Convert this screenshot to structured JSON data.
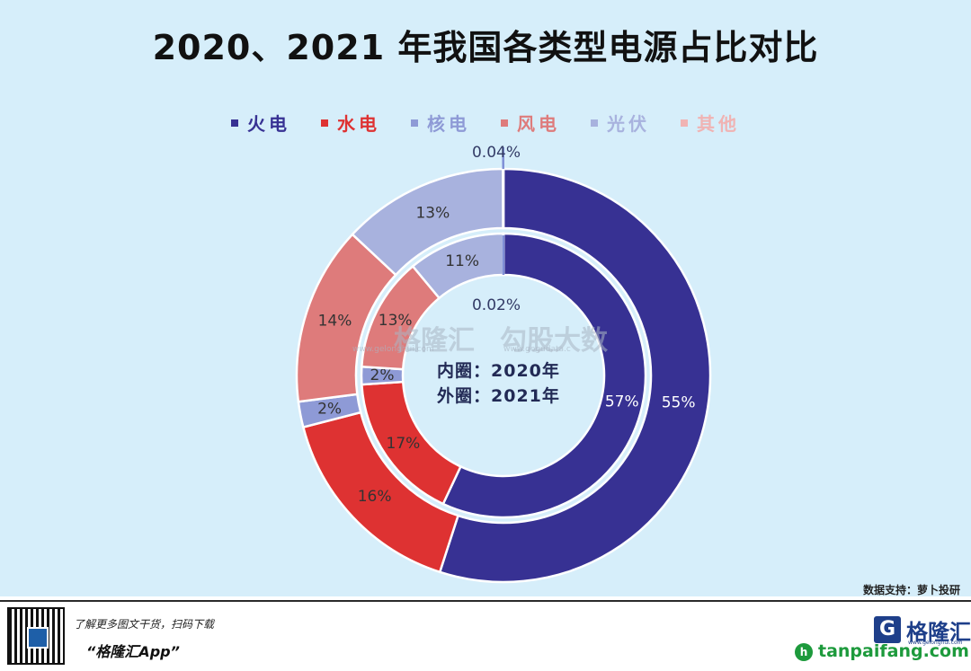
{
  "page": {
    "title": "2020、2021 年我国各类型电源占比对比",
    "source": "数据支持：萝卜投研",
    "inner_note_line1": "内圈：2020年",
    "inner_note_line2": "外圈：2021年",
    "watermark_brand": "格隆汇",
    "watermark_brand_url": "www.gelonghui.com",
    "watermark_data": "勾股大数",
    "watermark_data_url": "www.gogudata.c",
    "promo_line1": "了解更多图文干货，扫码下载",
    "promo_line2": "“格隆汇App”",
    "brand_logo_letter": "G",
    "brand_name": "格隆汇",
    "brand_url": "www.gelonghui.com",
    "site_icon_letter": "h",
    "site_text": "tanpaifang.com"
  },
  "chart_data": {
    "type": "donut",
    "categories": [
      "火电",
      "水电",
      "核电",
      "风电",
      "光伏",
      "其他"
    ],
    "colors": [
      "#373193",
      "#de3232",
      "#8e9ad6",
      "#de7b7b",
      "#a8b2de",
      "#f0b3b3"
    ],
    "series": [
      {
        "name": "2020年",
        "ring": "inner",
        "values": [
          57,
          17,
          2,
          13,
          11,
          0.02
        ],
        "labels": [
          "57%",
          "17%",
          "2%",
          "13%",
          "11%",
          "0.02%"
        ]
      },
      {
        "name": "2021年",
        "ring": "outer",
        "values": [
          55,
          16,
          2,
          14,
          13,
          0.04
        ],
        "labels": [
          "55%",
          "16%",
          "2%",
          "14%",
          "13%",
          "0.04%"
        ]
      }
    ]
  }
}
